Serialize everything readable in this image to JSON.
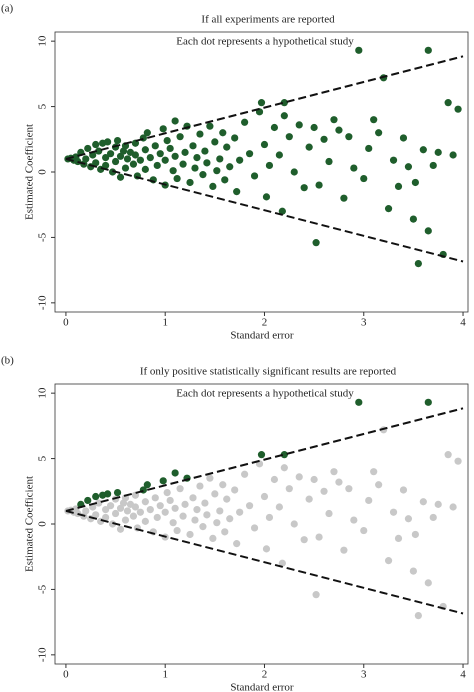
{
  "chart_data": [
    {
      "type": "scatter",
      "panel_label": "(a)",
      "title": "If all experiments are reported",
      "subtitle": "Each dot represents a hypothetical study",
      "xlabel": "Standard error",
      "ylabel": "Estimated Coefficient",
      "xlim": [
        -0.11,
        4.05
      ],
      "ylim": [
        -10.7,
        10.7
      ],
      "xticks": [
        0,
        1,
        2,
        3,
        4
      ],
      "yticks": [
        -10,
        -5,
        0,
        5,
        10
      ],
      "series": [
        {
          "color": "#1f5e2c",
          "x": [
            0.02,
            0.05,
            0.08,
            0.1,
            0.12,
            0.15,
            0.18,
            0.2,
            0.22,
            0.25,
            0.27,
            0.3,
            0.3,
            0.33,
            0.35,
            0.37,
            0.4,
            0.4,
            0.42,
            0.45,
            0.47,
            0.5,
            0.5,
            0.52,
            0.55,
            0.55,
            0.58,
            0.6,
            0.6,
            0.62,
            0.65,
            0.68,
            0.7,
            0.7,
            0.72,
            0.75,
            0.78,
            0.8,
            0.8,
            0.82,
            0.85,
            0.88,
            0.9,
            0.92,
            0.95,
            0.98,
            1.0,
            1.0,
            1.02,
            1.05,
            1.08,
            1.1,
            1.1,
            1.12,
            1.15,
            1.18,
            1.2,
            1.22,
            1.25,
            1.28,
            1.3,
            1.32,
            1.35,
            1.38,
            1.4,
            1.42,
            1.45,
            1.48,
            1.5,
            1.52,
            1.55,
            1.58,
            1.6,
            1.62,
            1.65,
            1.7,
            1.72,
            1.75,
            1.8,
            1.85,
            1.9,
            1.95,
            1.97,
            2.0,
            2.02,
            2.05,
            2.1,
            2.15,
            2.18,
            2.2,
            2.2,
            2.25,
            2.3,
            2.35,
            2.4,
            2.45,
            2.5,
            2.52,
            2.55,
            2.6,
            2.65,
            2.7,
            2.75,
            2.8,
            2.85,
            2.9,
            2.95,
            3.0,
            3.05,
            3.1,
            3.15,
            3.2,
            3.25,
            3.3,
            3.35,
            3.4,
            3.45,
            3.5,
            3.52,
            3.55,
            3.6,
            3.65,
            3.65,
            3.7,
            3.75,
            3.8,
            3.85,
            3.9,
            3.95
          ],
          "values": [
            1.0,
            1.05,
            0.9,
            1.15,
            0.8,
            1.5,
            0.6,
            1.0,
            1.8,
            0.4,
            1.3,
            2.1,
            0.7,
            1.6,
            0.2,
            2.2,
            1.1,
            0.5,
            2.3,
            1.4,
            0.0,
            1.9,
            0.8,
            2.4,
            1.2,
            -0.4,
            1.6,
            0.3,
            2.0,
            1.0,
            1.5,
            0.6,
            2.2,
            1.3,
            -0.3,
            0.9,
            2.6,
            1.7,
            0.2,
            3.0,
            1.1,
            -0.6,
            2.0,
            0.5,
            1.4,
            3.3,
            0.9,
            -1.0,
            2.4,
            1.8,
            0.1,
            3.9,
            1.2,
            -0.5,
            2.7,
            0.6,
            1.5,
            3.5,
            -0.8,
            2.0,
            0.3,
            1.1,
            2.9,
            -0.2,
            1.6,
            0.7,
            3.5,
            -1.1,
            2.3,
            0.1,
            1.0,
            3.0,
            -0.6,
            1.9,
            0.4,
            2.6,
            -1.5,
            0.9,
            3.8,
            1.4,
            -0.3,
            4.6,
            5.3,
            2.1,
            -1.9,
            0.5,
            3.4,
            1.3,
            -3.0,
            4.3,
            5.3,
            2.7,
            0.0,
            3.6,
            -1.2,
            1.9,
            3.4,
            -5.4,
            -1.0,
            2.5,
            0.8,
            4.0,
            3.2,
            -2.0,
            2.7,
            0.3,
            9.3,
            -0.5,
            1.8,
            4.0,
            3.0,
            7.2,
            -2.8,
            0.9,
            -1.1,
            2.6,
            0.4,
            -3.6,
            -0.8,
            -7.0,
            1.7,
            9.3,
            -4.5,
            0.5,
            1.5,
            -6.3,
            5.3,
            1.3,
            4.8
          ]
        }
      ],
      "reference_lines": [
        {
          "x": [
            0,
            4
          ],
          "values": [
            1,
            8.84
          ]
        },
        {
          "x": [
            0,
            4
          ],
          "values": [
            1,
            -6.84
          ]
        }
      ]
    },
    {
      "type": "scatter",
      "panel_label": "(b)",
      "title": "If only positive statistically significant results are reported",
      "subtitle": "Each dot represents a hypothetical study",
      "xlabel": "Standard error",
      "ylabel": "Estimated Coefficient",
      "xlim": [
        -0.11,
        4.05
      ],
      "ylim": [
        -10.7,
        10.7
      ],
      "xticks": [
        0,
        1,
        2,
        3,
        4
      ],
      "yticks": [
        -10,
        -5,
        0,
        5,
        10
      ],
      "series": [
        {
          "color": "#c8c8c8",
          "x": [
            0.02,
            0.05,
            0.08,
            0.1,
            0.12,
            0.18,
            0.2,
            0.25,
            0.27,
            0.3,
            0.33,
            0.35,
            0.4,
            0.4,
            0.45,
            0.47,
            0.5,
            0.5,
            0.55,
            0.55,
            0.58,
            0.6,
            0.6,
            0.62,
            0.65,
            0.68,
            0.7,
            0.7,
            0.72,
            0.75,
            0.8,
            0.8,
            0.85,
            0.88,
            0.9,
            0.92,
            0.95,
            1.0,
            1.0,
            1.02,
            1.05,
            1.08,
            1.1,
            1.12,
            1.15,
            1.18,
            1.2,
            1.25,
            1.28,
            1.3,
            1.32,
            1.35,
            1.38,
            1.4,
            1.42,
            1.45,
            1.48,
            1.5,
            1.52,
            1.55,
            1.58,
            1.6,
            1.62,
            1.65,
            1.7,
            1.72,
            1.75,
            1.8,
            1.85,
            1.9,
            1.95,
            2.0,
            2.02,
            2.05,
            2.1,
            2.15,
            2.18,
            2.2,
            2.25,
            2.3,
            2.35,
            2.4,
            2.45,
            2.5,
            2.52,
            2.55,
            2.6,
            2.65,
            2.7,
            2.75,
            2.8,
            2.85,
            2.9,
            3.0,
            3.05,
            3.1,
            3.15,
            3.2,
            3.25,
            3.3,
            3.35,
            3.4,
            3.45,
            3.5,
            3.52,
            3.55,
            3.6,
            3.65,
            3.7,
            3.75,
            3.8,
            3.85,
            3.9,
            3.95
          ],
          "values": [
            1.0,
            1.05,
            0.9,
            1.15,
            0.8,
            0.6,
            1.0,
            0.4,
            1.3,
            0.7,
            1.6,
            0.2,
            1.1,
            0.5,
            1.4,
            0.0,
            1.9,
            0.8,
            1.2,
            -0.4,
            1.6,
            0.3,
            2.0,
            1.0,
            1.5,
            0.6,
            2.2,
            1.3,
            -0.3,
            0.9,
            1.7,
            0.2,
            1.1,
            -0.6,
            2.0,
            0.5,
            1.4,
            0.9,
            -1.0,
            2.4,
            1.8,
            0.1,
            1.2,
            -0.5,
            2.7,
            0.6,
            1.5,
            -0.8,
            2.0,
            0.3,
            1.1,
            2.9,
            -0.2,
            1.6,
            0.7,
            3.5,
            -1.1,
            2.3,
            0.1,
            1.0,
            3.0,
            -0.6,
            1.9,
            0.4,
            2.6,
            -1.5,
            0.9,
            3.8,
            1.4,
            -0.3,
            4.6,
            2.1,
            -1.9,
            0.5,
            3.4,
            1.3,
            -3.0,
            4.3,
            2.7,
            0.0,
            3.6,
            -1.2,
            1.9,
            3.4,
            -5.4,
            -1.0,
            2.5,
            0.8,
            4.0,
            3.2,
            -2.0,
            2.7,
            0.3,
            -0.5,
            1.8,
            4.0,
            3.0,
            7.2,
            -2.8,
            0.9,
            -1.1,
            2.6,
            0.4,
            -3.6,
            -0.8,
            -7.0,
            1.7,
            -4.5,
            0.5,
            1.5,
            -6.3,
            5.3,
            1.3,
            4.8
          ]
        },
        {
          "color": "#1f5e2c",
          "x": [
            0.15,
            0.22,
            0.3,
            0.37,
            0.42,
            0.52,
            0.78,
            0.82,
            0.98,
            1.1,
            1.22,
            1.97,
            2.2,
            2.95,
            3.65
          ],
          "values": [
            1.5,
            1.8,
            2.1,
            2.2,
            2.3,
            2.4,
            2.6,
            3.0,
            3.3,
            3.9,
            3.5,
            5.3,
            5.3,
            9.3,
            9.3
          ]
        }
      ],
      "reference_lines": [
        {
          "x": [
            0,
            4
          ],
          "values": [
            1,
            8.84
          ]
        },
        {
          "x": [
            0,
            4
          ],
          "values": [
            1,
            -6.84
          ]
        }
      ]
    }
  ]
}
